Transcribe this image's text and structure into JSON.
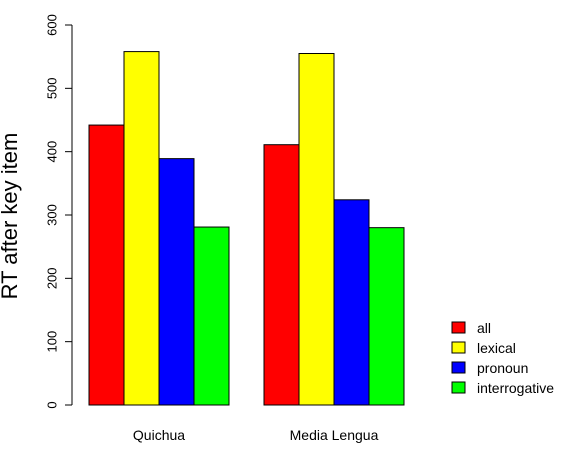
{
  "chart_data": {
    "type": "bar",
    "categories": [
      "Quichua",
      "Media Lengua"
    ],
    "series": [
      {
        "name": "all",
        "color": "#ff0000",
        "values": [
          442,
          411
        ]
      },
      {
        "name": "lexical",
        "color": "#ffff00",
        "values": [
          558,
          555
        ]
      },
      {
        "name": "pronoun",
        "color": "#0000ff",
        "values": [
          389,
          324
        ]
      },
      {
        "name": "interrogative",
        "color": "#00ff00",
        "values": [
          281,
          280
        ]
      }
    ],
    "title": "",
    "xlabel": "",
    "ylabel": "RT after key item",
    "ylim": [
      0,
      600
    ],
    "yticks": [
      0,
      100,
      200,
      300,
      400,
      500,
      600
    ],
    "grid": false,
    "legend_position": "bottom-right"
  }
}
